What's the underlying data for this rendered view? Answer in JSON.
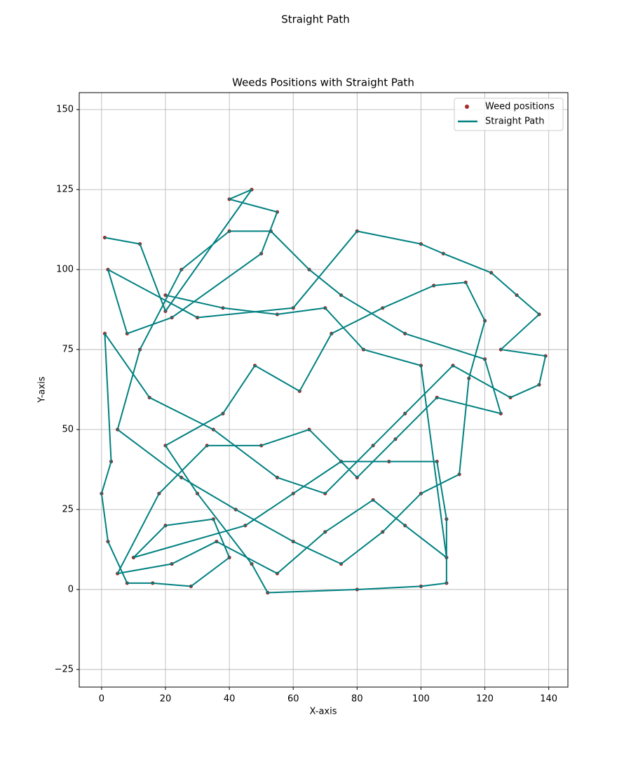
{
  "chart_data": {
    "type": "scatter",
    "suptitle": "Straight Path",
    "title": "Weeds Positions with Straight Path",
    "x_label": "X-axis",
    "y_label": "Y-axis",
    "xlim": [
      -7,
      146
    ],
    "ylim": [
      -30.5,
      155.3
    ],
    "xticks": [
      0,
      20,
      40,
      60,
      80,
      100,
      120,
      140
    ],
    "yticks": [
      {
        "value": -25,
        "label": "−25"
      },
      0,
      25,
      50,
      75,
      100,
      125,
      150
    ],
    "grid": true,
    "legend": "upper right",
    "series": [
      {
        "name": "Weed positions",
        "kind": "scatter",
        "color": "#a52a2a",
        "x": [
          1,
          12,
          20,
          47,
          40,
          55,
          50,
          22,
          8,
          2,
          30,
          60,
          80,
          100,
          107,
          122,
          130,
          137,
          125,
          139,
          137,
          128,
          110,
          95,
          85,
          70,
          55,
          35,
          15,
          1,
          3,
          0,
          2,
          8,
          16,
          28,
          40,
          35,
          20,
          10,
          45,
          60,
          75,
          90,
          105,
          108,
          108,
          100,
          80,
          52,
          47,
          30,
          20,
          38,
          48,
          62,
          72,
          88,
          104,
          114,
          120,
          115,
          112,
          100,
          88,
          75,
          60,
          42,
          25,
          5,
          12,
          25,
          40,
          53,
          65,
          75,
          95,
          120,
          125,
          105,
          92,
          80,
          65,
          50,
          33,
          18,
          5,
          22,
          36,
          55,
          70,
          85,
          95,
          108,
          100,
          82,
          70,
          55,
          38,
          20
        ],
        "y": [
          110,
          108,
          87,
          125,
          122,
          118,
          105,
          85,
          80,
          100,
          85,
          88,
          112,
          108,
          105,
          99,
          92,
          86,
          75,
          73,
          64,
          60,
          70,
          55,
          45,
          30,
          35,
          50,
          60,
          80,
          40,
          30,
          15,
          2,
          2,
          1,
          10,
          22,
          20,
          10,
          20,
          30,
          40,
          40,
          40,
          22,
          2,
          1,
          0,
          -1,
          8,
          30,
          45,
          55,
          70,
          62,
          80,
          88,
          95,
          96,
          84,
          66,
          36,
          30,
          18,
          8,
          15,
          25,
          35,
          50,
          75,
          100,
          112,
          112,
          100,
          92,
          80,
          72,
          55,
          60,
          47,
          35,
          50,
          45,
          45,
          30,
          5,
          8,
          15,
          5,
          18,
          28,
          20,
          10,
          70,
          75,
          88,
          86,
          88,
          92
        ]
      },
      {
        "name": "Straight Path",
        "kind": "line",
        "color": "#008080",
        "x": [
          1,
          12,
          20,
          47,
          40,
          55,
          50,
          22,
          8,
          2,
          30,
          60,
          80,
          100,
          107,
          122,
          130,
          137,
          125,
          139,
          137,
          128,
          110,
          95,
          85,
          70,
          55,
          35,
          15,
          1,
          3,
          0,
          2,
          8,
          16,
          28,
          40,
          35,
          20,
          10,
          45,
          60,
          75,
          90,
          105,
          108,
          108,
          100,
          80,
          52,
          47,
          30,
          20,
          38,
          48,
          62,
          72,
          88,
          104,
          114,
          120,
          115,
          112,
          100,
          88,
          75,
          60,
          42,
          25,
          5,
          12,
          25,
          40,
          53,
          65,
          75,
          95,
          120,
          125,
          105,
          92,
          80,
          65,
          50,
          33,
          18,
          5,
          22,
          36,
          55,
          70,
          85,
          95,
          108,
          100,
          82,
          70,
          55,
          38,
          20
        ],
        "y": [
          110,
          108,
          87,
          125,
          122,
          118,
          105,
          85,
          80,
          100,
          85,
          88,
          112,
          108,
          105,
          99,
          92,
          86,
          75,
          73,
          64,
          60,
          70,
          55,
          45,
          30,
          35,
          50,
          60,
          80,
          40,
          30,
          15,
          2,
          2,
          1,
          10,
          22,
          20,
          10,
          20,
          30,
          40,
          40,
          40,
          22,
          2,
          1,
          0,
          -1,
          8,
          30,
          45,
          55,
          70,
          62,
          80,
          88,
          95,
          96,
          84,
          66,
          36,
          30,
          18,
          8,
          15,
          25,
          35,
          50,
          75,
          100,
          112,
          112,
          100,
          92,
          80,
          72,
          55,
          60,
          47,
          35,
          50,
          45,
          45,
          30,
          5,
          8,
          15,
          5,
          18,
          28,
          20,
          10,
          70,
          75,
          88,
          86,
          88,
          92
        ]
      }
    ]
  }
}
